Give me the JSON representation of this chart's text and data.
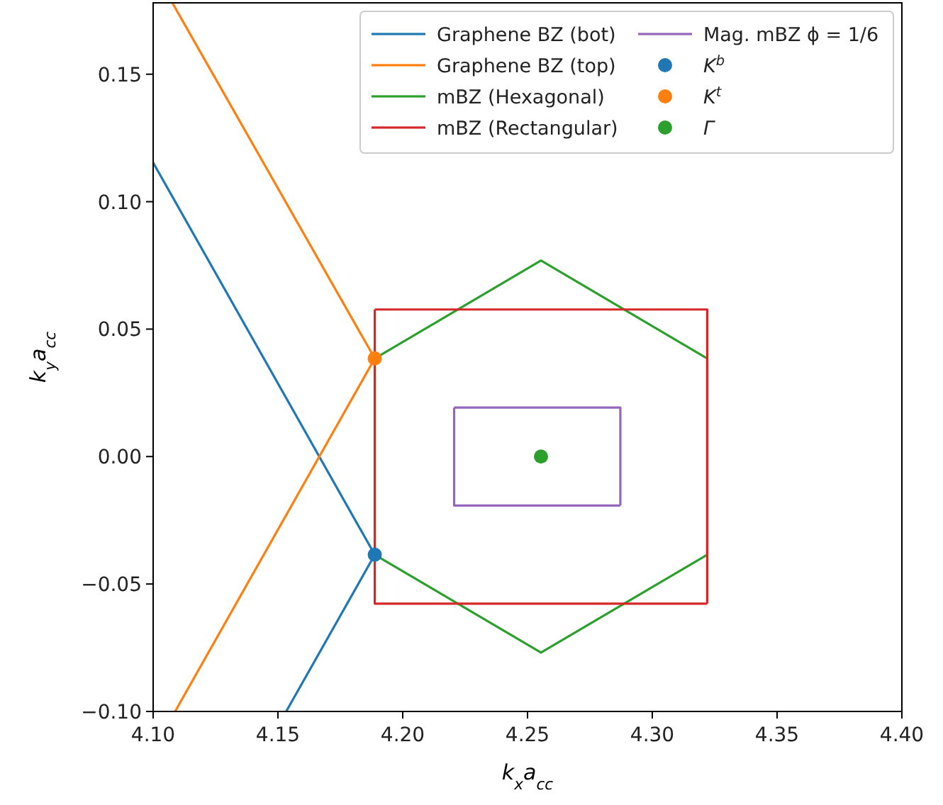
{
  "chart_data": {
    "type": "line",
    "xlabel": "k$_{x}$a$_{cc}$",
    "ylabel": "k$_{y}$a$_{cc}$",
    "xlim": [
      4.1,
      4.4
    ],
    "ylim": [
      -0.1,
      0.178
    ],
    "xticks": [
      {
        "value": 4.1,
        "label": "4.10"
      },
      {
        "value": 4.15,
        "label": "4.15"
      },
      {
        "value": 4.2,
        "label": "4.20"
      },
      {
        "value": 4.25,
        "label": "4.25"
      },
      {
        "value": 4.3,
        "label": "4.30"
      },
      {
        "value": 4.35,
        "label": "4.35"
      },
      {
        "value": 4.4,
        "label": "4.40"
      }
    ],
    "yticks": [
      {
        "value": -0.1,
        "label": "−0.10"
      },
      {
        "value": -0.05,
        "label": "−0.05"
      },
      {
        "value": 0.0,
        "label": "0.00"
      },
      {
        "value": 0.05,
        "label": "0.05"
      },
      {
        "value": 0.1,
        "label": "0.10"
      },
      {
        "value": 0.15,
        "label": "0.15"
      }
    ],
    "legend": "top right",
    "series": [
      {
        "name": "Graphene BZ (bot)",
        "color": "#1f77b4",
        "x": [
          4.1,
          4.1888,
          4.1533
        ],
        "values": [
          0.1153,
          -0.0385,
          -0.1
        ]
      },
      {
        "name": "Graphene BZ (top)",
        "color": "#ff7f0e",
        "x": [
          4.1077,
          4.1888,
          4.1088
        ],
        "values": [
          0.178,
          0.0385,
          -0.1
        ]
      },
      {
        "name": "mBZ (Hexagonal)",
        "color": "#2ca02c",
        "x": [
          4.1888,
          4.2554,
          4.322,
          4.322,
          4.2554,
          4.1888,
          4.1888
        ],
        "values": [
          0.0385,
          0.0769,
          0.0385,
          -0.0385,
          -0.0769,
          -0.0385,
          0.0385
        ]
      },
      {
        "name": "mBZ (Rectangular)",
        "color": "#d62728",
        "x": [
          4.1888,
          4.322,
          4.322,
          4.1888,
          4.1888
        ],
        "values": [
          0.0577,
          0.0577,
          -0.0577,
          -0.0577,
          0.0577
        ]
      },
      {
        "name": "Mag. mBZ ϕ = 1/6",
        "color": "#9467bd",
        "x": [
          4.2206,
          4.2872,
          4.2872,
          4.2206,
          4.2206
        ],
        "values": [
          0.0192,
          0.0192,
          -0.0192,
          -0.0192,
          0.0192
        ]
      },
      {
        "name": "K$^{b}$",
        "type": "scatter",
        "marker": "circle",
        "color": "#1f77b4",
        "x": [
          4.1888
        ],
        "values": [
          -0.0385
        ]
      },
      {
        "name": "K$^{t}$",
        "type": "scatter",
        "marker": "circle",
        "color": "#ff7f0e",
        "x": [
          4.1888
        ],
        "values": [
          0.0385
        ]
      },
      {
        "name": "Γ",
        "type": "scatter",
        "marker": "circle",
        "color": "#2ca02c",
        "x": [
          4.2554
        ],
        "values": [
          0.0
        ]
      }
    ]
  }
}
